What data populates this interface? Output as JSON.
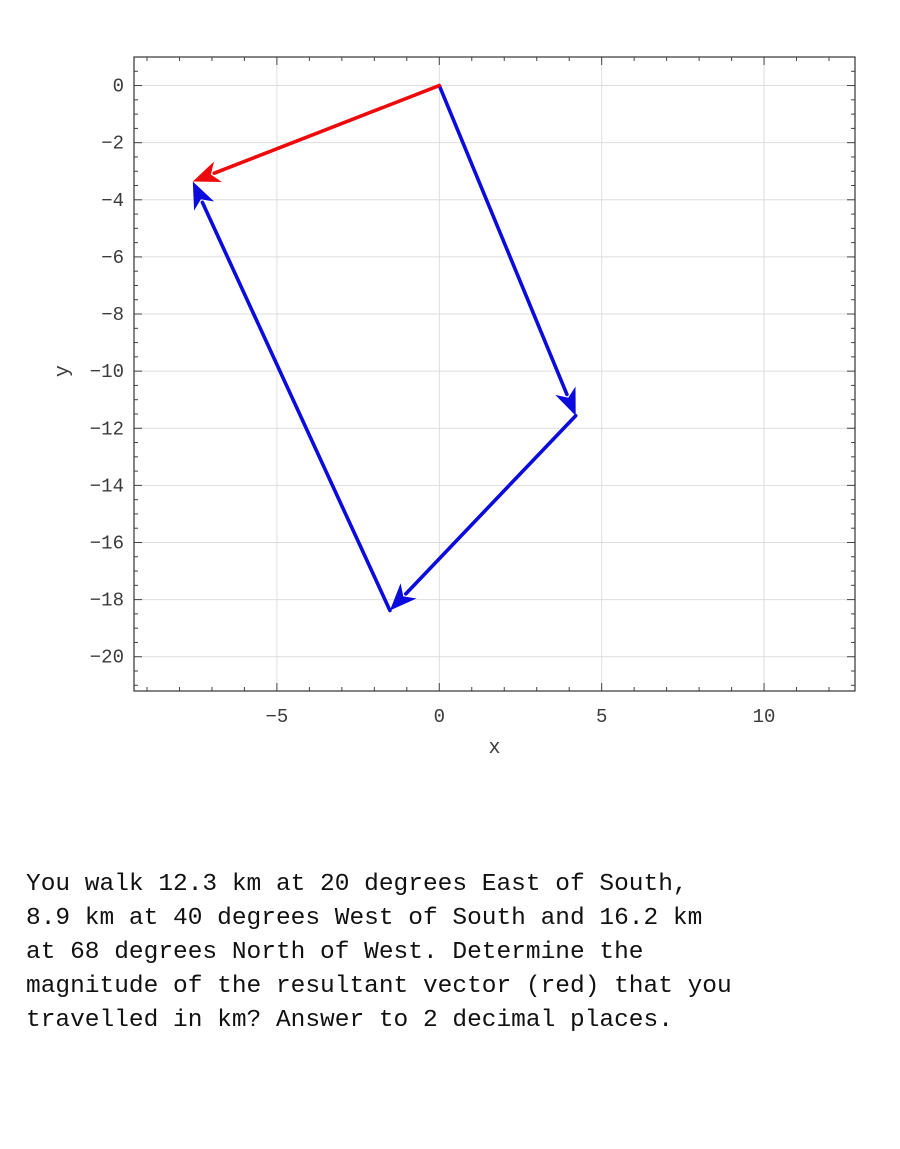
{
  "chart_data": {
    "type": "vector-diagram",
    "xlabel": "x",
    "ylabel": "y",
    "xlim": [
      -9.4,
      12.8
    ],
    "ylim": [
      -21.2,
      1.0
    ],
    "grid": true,
    "x_ticks": [
      -5,
      0,
      5,
      10
    ],
    "x_tick_labels": [
      "−5",
      "0",
      "5",
      "10"
    ],
    "y_ticks": [
      0,
      -2,
      -4,
      -6,
      -8,
      -10,
      -12,
      -14,
      -16,
      -18,
      -20
    ],
    "y_tick_labels": [
      "0",
      "−2",
      "−4",
      "−6",
      "−8",
      "−10",
      "−12",
      "−14",
      "−16",
      "−18",
      "−20"
    ],
    "vectors": [
      {
        "from": [
          0,
          0
        ],
        "to": [
          4.2,
          -11.56
        ],
        "color": "#0b0bde"
      },
      {
        "from": [
          4.2,
          -11.56
        ],
        "to": [
          -1.52,
          -18.38
        ],
        "color": "#0b0bde"
      },
      {
        "from": [
          -1.52,
          -18.38
        ],
        "to": [
          -7.59,
          -3.36
        ],
        "color": "#0b0bde"
      },
      {
        "from": [
          0,
          0
        ],
        "to": [
          -7.59,
          -3.36
        ],
        "color": "#ee0a0a"
      }
    ]
  },
  "question": {
    "text": "You walk 12.3 km at 20 degrees East of South,\n8.9 km at 40 degrees West of South and 16.2 km\nat 68 degrees North of West.  Determine the\nmagnitude of the resultant vector (red) that you\ntravelled in km? Answer to 2 decimal places."
  }
}
